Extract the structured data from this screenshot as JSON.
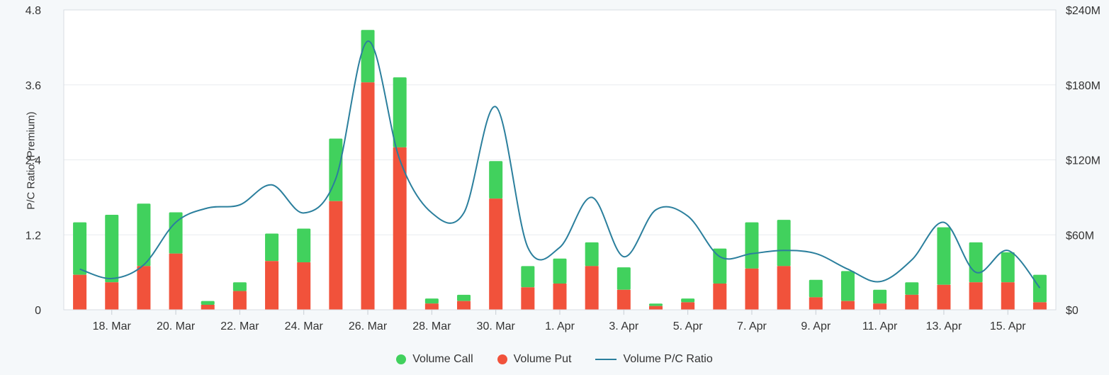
{
  "chart_data": {
    "type": "bar",
    "subtype": "stacked-bars-with-line-overlay",
    "title": "",
    "categories": [
      "17. Mar",
      "18. Mar",
      "19. Mar",
      "20. Mar",
      "21. Mar",
      "22. Mar",
      "23. Mar",
      "24. Mar",
      "25. Mar",
      "26. Mar",
      "27. Mar",
      "28. Mar",
      "29. Mar",
      "30. Mar",
      "31. Mar",
      "1. Apr",
      "2. Apr",
      "3. Apr",
      "4. Apr",
      "5. Apr",
      "6. Apr",
      "7. Apr",
      "8. Apr",
      "9. Apr",
      "10. Apr",
      "11. Apr",
      "12. Apr",
      "13. Apr",
      "14. Apr",
      "15. Apr",
      "16. Apr"
    ],
    "x_tick_labels": [
      "18. Mar",
      "20. Mar",
      "22. Mar",
      "24. Mar",
      "26. Mar",
      "28. Mar",
      "30. Mar",
      "1. Apr",
      "3. Apr",
      "5. Apr",
      "7. Apr",
      "9. Apr",
      "11. Apr",
      "13. Apr",
      "15. Apr"
    ],
    "left_axis": {
      "title": "P/C Ratio (Premium)",
      "tick_labels": [
        "0",
        "1.2",
        "2.4",
        "3.6",
        "4.8"
      ],
      "tick_values": [
        0,
        1.2,
        2.4,
        3.6,
        4.8
      ],
      "min": 0,
      "max": 4.8
    },
    "right_axis": {
      "tick_labels": [
        "$0",
        "$60M",
        "$120M",
        "$180M",
        "$240M"
      ],
      "tick_values": [
        0,
        60,
        120,
        180,
        240
      ],
      "min": 0,
      "max": 240
    },
    "series": [
      {
        "name": "Volume Call",
        "type": "column",
        "stack": "volume",
        "axis": "right",
        "color": "#41d15d",
        "values_musd": [
          42,
          54,
          50,
          33,
          3,
          7,
          22,
          27,
          50,
          42,
          56,
          4,
          5,
          30,
          17,
          20,
          19,
          18,
          2,
          3,
          28,
          37,
          37,
          14,
          24,
          11,
          10,
          46,
          32,
          24,
          22
        ]
      },
      {
        "name": "Volume Put",
        "type": "column",
        "stack": "volume",
        "axis": "right",
        "color": "#f1523b",
        "values_musd": [
          28,
          22,
          35,
          45,
          4,
          15,
          39,
          38,
          87,
          182,
          130,
          5,
          7,
          89,
          18,
          21,
          35,
          16,
          3,
          6,
          21,
          33,
          35,
          10,
          7,
          5,
          12,
          20,
          22,
          22,
          6
        ]
      },
      {
        "name": "Volume P/C Ratio",
        "type": "line",
        "axis": "left",
        "color": "#2b7f9d",
        "values": [
          0.65,
          0.5,
          0.72,
          1.4,
          1.63,
          1.68,
          2.0,
          1.55,
          2.1,
          4.3,
          2.4,
          1.55,
          1.55,
          3.25,
          1.0,
          1.0,
          1.8,
          0.85,
          1.6,
          1.5,
          0.85,
          0.9,
          0.95,
          0.9,
          0.65,
          0.45,
          0.8,
          1.4,
          0.6,
          0.95,
          0.35
        ]
      }
    ],
    "legend_position": "bottom-center",
    "grid": "horizontal",
    "colors": {
      "background": "#f5f8fa",
      "plot_background": "#ffffff",
      "plot_border": "#d8dde3",
      "gridline": "#e8ecef",
      "tick": "#c7cdd4",
      "text": "#333333"
    }
  }
}
